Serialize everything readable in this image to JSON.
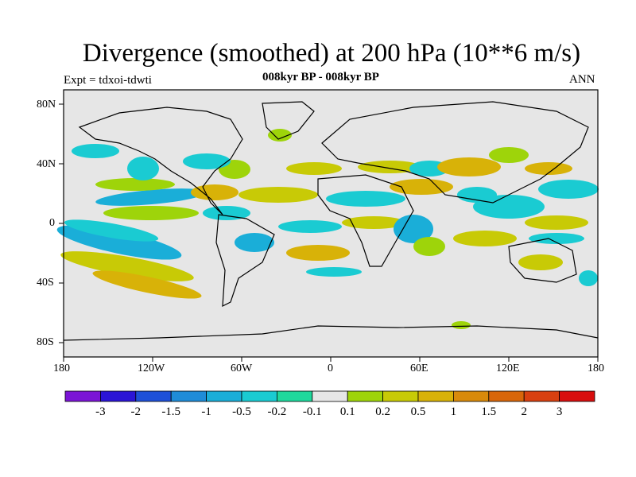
{
  "title": "Divergence (smoothed) at 200 hPa (10**6 m/s)",
  "experiment": "Expt = tdxoi-tdwti",
  "period": "008kyr BP - 008kyr BP",
  "season": "ANN",
  "lat_labels": [
    "80N",
    "40N",
    "0",
    "40S",
    "80S"
  ],
  "lon_labels": [
    "180",
    "120W",
    "60W",
    "0",
    "60E",
    "120E",
    "180"
  ],
  "colorbar": {
    "colors": [
      "#7b14d6",
      "#2b14d6",
      "#1e50d8",
      "#1f8cd8",
      "#1aaed8",
      "#1acbd2",
      "#1fd89c",
      "#e6e6e6",
      "#9ed40a",
      "#c8ca06",
      "#d8b208",
      "#d88a0b",
      "#d8660a",
      "#d84010",
      "#d80e0e"
    ],
    "labels": [
      "-3",
      "-2",
      "-1.5",
      "-1",
      "-0.5",
      "-0.2",
      "-0.1",
      "0.1",
      "0.2",
      "0.5",
      "1",
      "1.5",
      "2",
      "3"
    ]
  },
  "map_colors": {
    "background": "#e6e6e6",
    "green": "#9ed40a",
    "olive": "#c8ca06",
    "orange": "#d8b208",
    "cyan": "#1acbd2",
    "light_blue": "#1aaed8",
    "teal": "#1fd89c"
  }
}
